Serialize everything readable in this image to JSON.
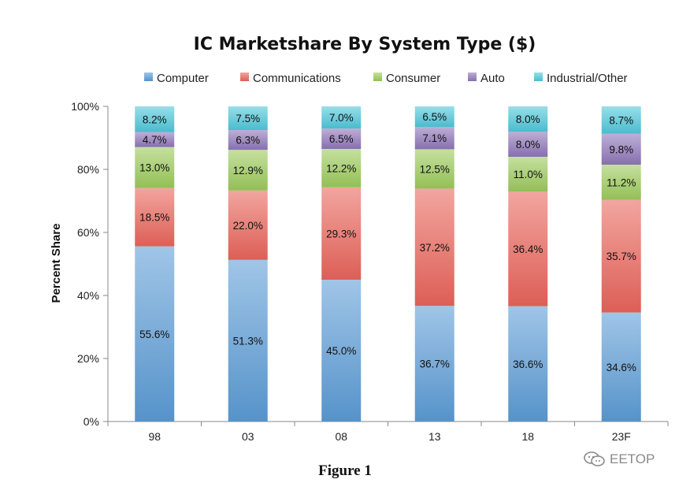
{
  "chart_data": {
    "type": "bar",
    "stacked": true,
    "title": "IC Marketshare By System Type ($)",
    "xlabel": "",
    "ylabel": "Percent Share",
    "ylim": [
      0,
      100
    ],
    "y_ticks": [
      "0%",
      "20%",
      "40%",
      "60%",
      "80%",
      "100%"
    ],
    "categories": [
      "98",
      "03",
      "08",
      "13",
      "18",
      "23F"
    ],
    "legend_position": "top",
    "grid": false,
    "series": [
      {
        "name": "Computer",
        "color": "#5b9bd5",
        "values": [
          55.6,
          51.3,
          45.0,
          36.7,
          36.6,
          34.6
        ],
        "labels": [
          "55.6%",
          "51.3%",
          "45.0%",
          "36.7%",
          "36.6%",
          "34.6%"
        ]
      },
      {
        "name": "Communications",
        "color": "#e8645a",
        "values": [
          18.5,
          22.0,
          29.3,
          37.2,
          36.4,
          35.7
        ],
        "labels": [
          "18.5%",
          "22.0%",
          "29.3%",
          "37.2%",
          "36.4%",
          "35.7%"
        ]
      },
      {
        "name": "Consumer",
        "color": "#9bc95a",
        "values": [
          13.0,
          12.9,
          12.2,
          12.5,
          11.0,
          11.2
        ],
        "labels": [
          "13.0%",
          "12.9%",
          "12.2%",
          "12.5%",
          "11.0%",
          "11.2%"
        ]
      },
      {
        "name": "Auto",
        "color": "#8e75b8",
        "values": [
          4.7,
          6.3,
          6.5,
          7.1,
          8.0,
          9.8
        ],
        "labels": [
          "4.7%",
          "6.3%",
          "6.5%",
          "7.1%",
          "8.0%",
          "9.8%"
        ]
      },
      {
        "name": "Industrial/Other",
        "color": "#4ec6d9",
        "values": [
          8.2,
          7.5,
          7.0,
          6.5,
          8.0,
          8.7
        ],
        "labels": [
          "8.2%",
          "7.5%",
          "7.0%",
          "6.5%",
          "8.0%",
          "8.7%"
        ]
      }
    ]
  },
  "caption": "Figure 1",
  "watermark": "EETOP"
}
